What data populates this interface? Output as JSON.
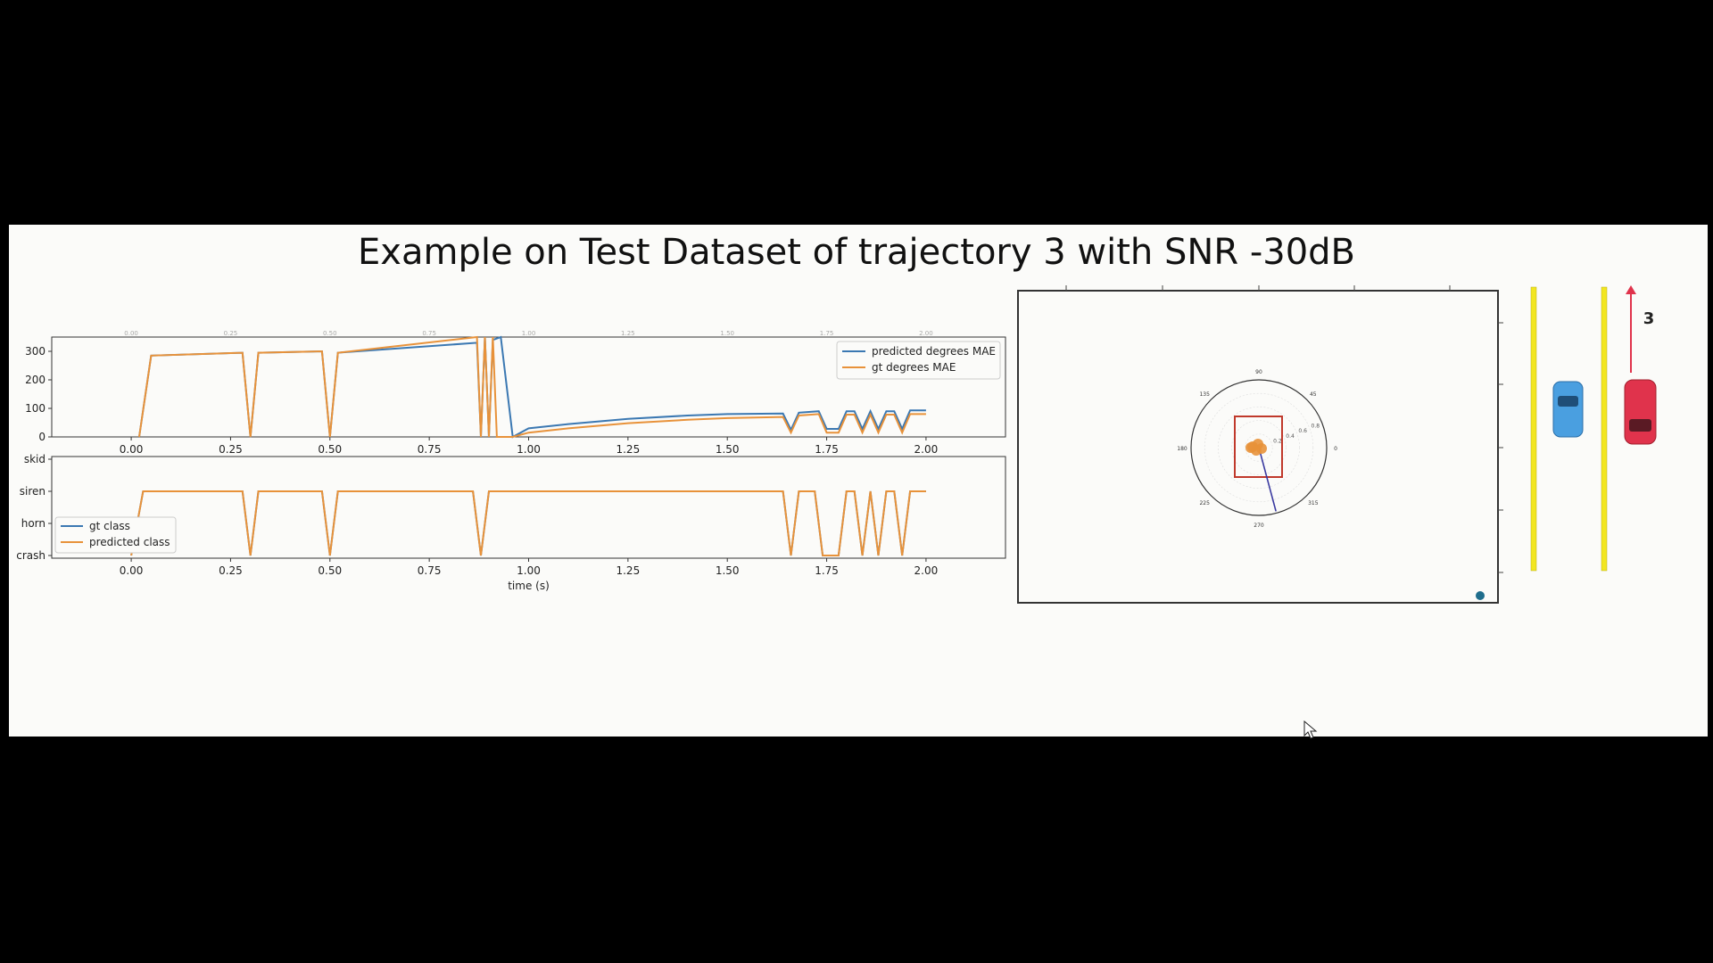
{
  "title": "Example on Test Dataset of trajectory 3 with SNR -30dB",
  "colors": {
    "blue": "#3b78b2",
    "orange": "#e8923a",
    "axis": "#333333",
    "lane": "#f2e620",
    "box": "#c0392b",
    "car_blue": "#4a9fe0",
    "car_red": "#e0334c"
  },
  "lane_label": "3",
  "chart_data": [
    {
      "type": "line",
      "id": "degrees",
      "xlim": [
        -0.2,
        2.2
      ],
      "ylim": [
        0,
        350
      ],
      "yticks": [
        0,
        100,
        200,
        300
      ],
      "xticks": [
        "0.00",
        "0.25",
        "0.50",
        "0.75",
        "1.00",
        "1.25",
        "1.50",
        "1.75",
        "2.00"
      ],
      "legend_position": "upper-right",
      "series": [
        {
          "name": "predicted degrees MAE",
          "color": "#3b78b2",
          "points": [
            [
              0.02,
              0
            ],
            [
              0.05,
              285
            ],
            [
              0.28,
              295
            ],
            [
              0.3,
              0
            ],
            [
              0.32,
              295
            ],
            [
              0.48,
              300
            ],
            [
              0.5,
              0
            ],
            [
              0.52,
              295
            ],
            [
              0.87,
              330
            ],
            [
              0.88,
              0
            ],
            [
              0.89,
              350
            ],
            [
              0.9,
              0
            ],
            [
              0.91,
              340
            ],
            [
              0.93,
              350
            ],
            [
              0.96,
              0
            ],
            [
              1.0,
              30
            ],
            [
              1.1,
              45
            ],
            [
              1.25,
              63
            ],
            [
              1.4,
              75
            ],
            [
              1.5,
              80
            ],
            [
              1.64,
              82
            ],
            [
              1.66,
              25
            ],
            [
              1.68,
              85
            ],
            [
              1.73,
              90
            ],
            [
              1.75,
              28
            ],
            [
              1.78,
              28
            ],
            [
              1.8,
              90
            ],
            [
              1.82,
              90
            ],
            [
              1.84,
              28
            ],
            [
              1.86,
              90
            ],
            [
              1.88,
              28
            ],
            [
              1.9,
              90
            ],
            [
              1.92,
              90
            ],
            [
              1.94,
              28
            ],
            [
              1.96,
              93
            ],
            [
              2.0,
              93
            ]
          ]
        },
        {
          "name": "gt degrees MAE",
          "color": "#e8923a",
          "points": [
            [
              0.02,
              0
            ],
            [
              0.05,
              285
            ],
            [
              0.28,
              295
            ],
            [
              0.3,
              0
            ],
            [
              0.32,
              295
            ],
            [
              0.48,
              300
            ],
            [
              0.5,
              0
            ],
            [
              0.52,
              295
            ],
            [
              0.87,
              350
            ],
            [
              0.88,
              0
            ],
            [
              0.89,
              350
            ],
            [
              0.9,
              0
            ],
            [
              0.91,
              350
            ],
            [
              0.92,
              0
            ],
            [
              0.96,
              0
            ],
            [
              1.0,
              15
            ],
            [
              1.1,
              30
            ],
            [
              1.25,
              48
            ],
            [
              1.4,
              60
            ],
            [
              1.5,
              66
            ],
            [
              1.64,
              70
            ],
            [
              1.66,
              15
            ],
            [
              1.68,
              75
            ],
            [
              1.73,
              80
            ],
            [
              1.75,
              15
            ],
            [
              1.78,
              15
            ],
            [
              1.8,
              78
            ],
            [
              1.82,
              78
            ],
            [
              1.84,
              15
            ],
            [
              1.86,
              78
            ],
            [
              1.88,
              15
            ],
            [
              1.9,
              78
            ],
            [
              1.92,
              78
            ],
            [
              1.94,
              15
            ],
            [
              1.96,
              80
            ],
            [
              2.0,
              80
            ]
          ]
        }
      ]
    },
    {
      "type": "line",
      "id": "class",
      "xlim": [
        -0.2,
        2.2
      ],
      "xlabel": "time (s)",
      "categories": [
        "crash",
        "horn",
        "siren",
        "skid"
      ],
      "xticks": [
        "0.00",
        "0.25",
        "0.50",
        "0.75",
        "1.00",
        "1.25",
        "1.50",
        "1.75",
        "2.00"
      ],
      "legend_position": "lower-left",
      "series": [
        {
          "name": "gt class",
          "color": "#3b78b2",
          "points": [
            [
              0.0,
              0
            ],
            [
              0.03,
              2
            ],
            [
              0.28,
              2
            ],
            [
              0.3,
              0
            ],
            [
              0.32,
              2
            ],
            [
              0.48,
              2
            ],
            [
              0.5,
              0
            ],
            [
              0.52,
              2
            ],
            [
              0.86,
              2
            ],
            [
              0.88,
              0
            ],
            [
              0.9,
              2
            ],
            [
              1.64,
              2
            ],
            [
              1.66,
              0
            ],
            [
              1.68,
              2
            ],
            [
              1.72,
              2
            ],
            [
              1.74,
              0
            ],
            [
              1.78,
              0
            ],
            [
              1.8,
              2
            ],
            [
              1.82,
              2
            ],
            [
              1.84,
              0
            ],
            [
              1.86,
              2
            ],
            [
              1.88,
              0
            ],
            [
              1.9,
              2
            ],
            [
              1.92,
              2
            ],
            [
              1.94,
              0
            ],
            [
              1.96,
              2
            ],
            [
              2.0,
              2
            ]
          ]
        },
        {
          "name": "predicted class",
          "color": "#e8923a",
          "points": [
            [
              0.0,
              0
            ],
            [
              0.03,
              2
            ],
            [
              0.28,
              2
            ],
            [
              0.3,
              0
            ],
            [
              0.32,
              2
            ],
            [
              0.48,
              2
            ],
            [
              0.5,
              0
            ],
            [
              0.52,
              2
            ],
            [
              0.86,
              2
            ],
            [
              0.88,
              0
            ],
            [
              0.9,
              2
            ],
            [
              1.64,
              2
            ],
            [
              1.66,
              0
            ],
            [
              1.68,
              2
            ],
            [
              1.72,
              2
            ],
            [
              1.74,
              0
            ],
            [
              1.78,
              0
            ],
            [
              1.8,
              2
            ],
            [
              1.82,
              2
            ],
            [
              1.84,
              0
            ],
            [
              1.86,
              2
            ],
            [
              1.88,
              0
            ],
            [
              1.9,
              2
            ],
            [
              1.92,
              2
            ],
            [
              1.94,
              0
            ],
            [
              1.96,
              2
            ],
            [
              2.0,
              2
            ]
          ]
        }
      ]
    },
    {
      "type": "scatter",
      "id": "polar",
      "polar_angle_labels": [
        "0",
        "45",
        "90",
        "135",
        "180",
        "225",
        "270",
        "315"
      ],
      "polar_radius_labels": [
        "0.2",
        "0.4",
        "0.6",
        "0.8"
      ],
      "direction_deg": 285
    }
  ]
}
